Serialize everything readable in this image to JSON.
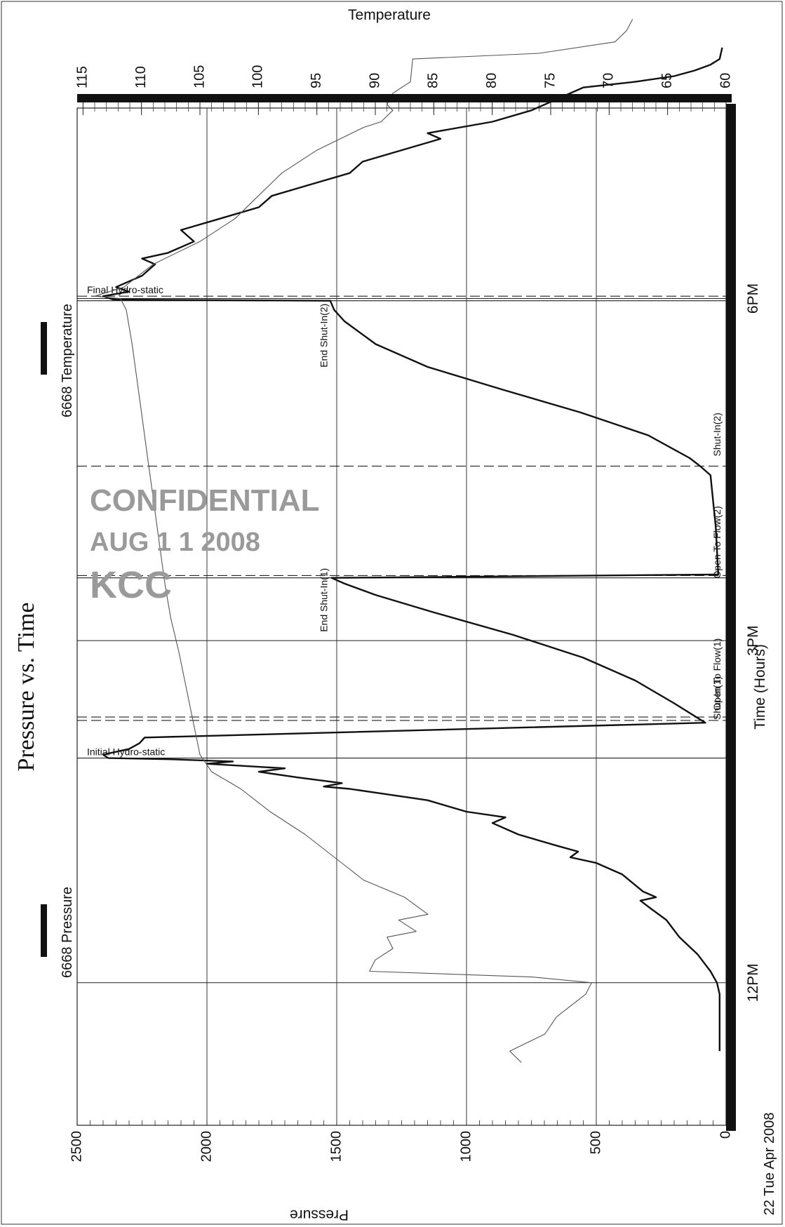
{
  "chart_data": {
    "type": "line",
    "title": "Pressure vs. Time",
    "xlabel": "Time (Hours)",
    "ylabel": "Pressure",
    "y2label": "Temperature",
    "date_label": "22 Tue Apr 2008",
    "xlim": [
      10.75,
      19.67
    ],
    "ylim": [
      0,
      2500
    ],
    "y2lim": [
      60,
      115.5
    ],
    "x_ticks": [
      {
        "x": 12,
        "label": "12PM"
      },
      {
        "x": 15,
        "label": "3PM"
      },
      {
        "x": 18,
        "label": "6PM"
      }
    ],
    "y_ticks": [
      0,
      500,
      1000,
      1500,
      2000,
      2500
    ],
    "y2_ticks": [
      60,
      65,
      70,
      75,
      80,
      85,
      90,
      95,
      100,
      105,
      110,
      115
    ],
    "grid": true,
    "legend": [
      {
        "label": "6668 Pressure",
        "color": "#111111",
        "position": "left"
      },
      {
        "label": "6668 Temperature",
        "color": "#111111",
        "position": "right"
      }
    ],
    "events": [
      {
        "x": 13.97,
        "label": "Initial Hydro-static",
        "style": "solid",
        "label_at": "top"
      },
      {
        "x": 14.3,
        "label": "Open To Flow(1)",
        "style": "dashed",
        "label_at": "bottom"
      },
      {
        "x": 14.33,
        "label": "Shut-In(1)",
        "style": "dashed",
        "label_at": "bottom"
      },
      {
        "x": 15.55,
        "label": "End Shut-In(1)",
        "style": "solid",
        "label_at": "middle"
      },
      {
        "x": 15.57,
        "label": "Open To Flow(2)",
        "style": "dashed",
        "label_at": "bottom"
      },
      {
        "x": 16.53,
        "label": "Shut-In(2)",
        "style": "dashed",
        "label_at": "bottom"
      },
      {
        "x": 17.98,
        "label": "End Shut-In(2)",
        "style": "solid",
        "label_at": "middle"
      },
      {
        "x": 18.02,
        "label": "Final Hydro-static",
        "style": "dashed",
        "label_at": "top"
      }
    ],
    "series": [
      {
        "name": "6668 Pressure",
        "axis": "left",
        "color": "#111111",
        "points": [
          [
            11.4,
            25
          ],
          [
            11.9,
            25
          ],
          [
            12.0,
            35
          ],
          [
            12.1,
            60
          ],
          [
            12.25,
            110
          ],
          [
            12.4,
            180
          ],
          [
            12.55,
            230
          ],
          [
            12.65,
            290
          ],
          [
            12.72,
            330
          ],
          [
            12.75,
            270
          ],
          [
            12.8,
            320
          ],
          [
            12.95,
            400
          ],
          [
            13.05,
            500
          ],
          [
            13.1,
            600
          ],
          [
            13.15,
            570
          ],
          [
            13.2,
            650
          ],
          [
            13.3,
            800
          ],
          [
            13.4,
            900
          ],
          [
            13.45,
            850
          ],
          [
            13.5,
            1000
          ],
          [
            13.6,
            1150
          ],
          [
            13.65,
            1300
          ],
          [
            13.7,
            1450
          ],
          [
            13.72,
            1550
          ],
          [
            13.75,
            1480
          ],
          [
            13.8,
            1650
          ],
          [
            13.85,
            1800
          ],
          [
            13.88,
            1700
          ],
          [
            13.92,
            2000
          ],
          [
            13.94,
            1900
          ],
          [
            13.96,
            2150
          ],
          [
            13.97,
            2380
          ],
          [
            14.0,
            2400
          ],
          [
            14.05,
            2300
          ],
          [
            14.1,
            2260
          ],
          [
            14.15,
            2240
          ],
          [
            14.28,
            80
          ],
          [
            14.45,
            200
          ],
          [
            14.65,
            350
          ],
          [
            14.85,
            550
          ],
          [
            15.05,
            820
          ],
          [
            15.25,
            1130
          ],
          [
            15.4,
            1350
          ],
          [
            15.5,
            1470
          ],
          [
            15.55,
            1520
          ],
          [
            15.58,
            30
          ],
          [
            16.0,
            40
          ],
          [
            16.45,
            60
          ],
          [
            16.53,
            100
          ],
          [
            16.6,
            140
          ],
          [
            16.8,
            300
          ],
          [
            17.0,
            560
          ],
          [
            17.2,
            860
          ],
          [
            17.4,
            1150
          ],
          [
            17.6,
            1350
          ],
          [
            17.8,
            1470
          ],
          [
            17.9,
            1510
          ],
          [
            17.98,
            1525
          ],
          [
            17.99,
            2360
          ],
          [
            18.02,
            2400
          ],
          [
            18.06,
            2300
          ],
          [
            18.1,
            2350
          ],
          [
            18.2,
            2250
          ],
          [
            18.3,
            2200
          ],
          [
            18.35,
            2250
          ],
          [
            18.4,
            2150
          ],
          [
            18.5,
            2050
          ],
          [
            18.6,
            2100
          ],
          [
            18.7,
            1950
          ],
          [
            18.8,
            1800
          ],
          [
            18.9,
            1750
          ],
          [
            19.0,
            1600
          ],
          [
            19.1,
            1450
          ],
          [
            19.2,
            1400
          ],
          [
            19.3,
            1250
          ],
          [
            19.4,
            1100
          ],
          [
            19.45,
            1150
          ],
          [
            19.55,
            900
          ],
          [
            19.65,
            750
          ],
          [
            19.75,
            650
          ],
          [
            19.85,
            550
          ],
          [
            19.9,
            350
          ],
          [
            19.95,
            200
          ],
          [
            20.0,
            120
          ],
          [
            20.05,
            60
          ],
          [
            20.1,
            25
          ],
          [
            20.2,
            15
          ]
        ]
      },
      {
        "name": "6668 Temperature",
        "axis": "right",
        "color": "#555555",
        "points": [
          [
            11.3,
            77.5
          ],
          [
            11.4,
            78.5
          ],
          [
            11.55,
            75.5
          ],
          [
            11.7,
            74.5
          ],
          [
            11.9,
            72
          ],
          [
            12.0,
            71.5
          ],
          [
            12.05,
            76.5
          ],
          [
            12.1,
            90.5
          ],
          [
            12.2,
            90
          ],
          [
            12.3,
            88.5
          ],
          [
            12.4,
            89
          ],
          [
            12.45,
            86.5
          ],
          [
            12.55,
            88
          ],
          [
            12.6,
            85.5
          ],
          [
            12.75,
            87.5
          ],
          [
            12.9,
            91
          ],
          [
            13.1,
            93.5
          ],
          [
            13.3,
            96
          ],
          [
            13.5,
            99
          ],
          [
            13.7,
            101.5
          ],
          [
            13.85,
            104
          ],
          [
            14.0,
            105
          ],
          [
            14.3,
            105.6
          ],
          [
            14.6,
            106.2
          ],
          [
            14.9,
            106.8
          ],
          [
            15.2,
            107.5
          ],
          [
            15.5,
            108
          ],
          [
            15.8,
            108.4
          ],
          [
            16.1,
            108.8
          ],
          [
            16.4,
            109.2
          ],
          [
            16.7,
            109.6
          ],
          [
            17.0,
            110
          ],
          [
            17.3,
            110.4
          ],
          [
            17.6,
            110.8
          ],
          [
            17.9,
            111.3
          ],
          [
            18.0,
            111.8
          ],
          [
            18.02,
            114
          ],
          [
            18.1,
            111.5
          ],
          [
            18.3,
            109
          ],
          [
            18.5,
            105
          ],
          [
            18.7,
            102
          ],
          [
            18.9,
            100
          ],
          [
            19.1,
            98
          ],
          [
            19.3,
            95
          ],
          [
            19.5,
            91
          ],
          [
            19.55,
            89.5
          ],
          [
            19.65,
            88.5
          ],
          [
            19.7,
            89
          ],
          [
            19.8,
            88.5
          ],
          [
            19.9,
            87
          ],
          [
            20.1,
            86.8
          ],
          [
            20.15,
            76
          ],
          [
            20.25,
            69.5
          ],
          [
            20.35,
            68.5
          ],
          [
            20.45,
            68
          ]
        ]
      }
    ]
  },
  "stamp": {
    "line1": "CONFIDENTIAL",
    "line2": "AUG 1 1 2008",
    "line3": "KCC"
  }
}
